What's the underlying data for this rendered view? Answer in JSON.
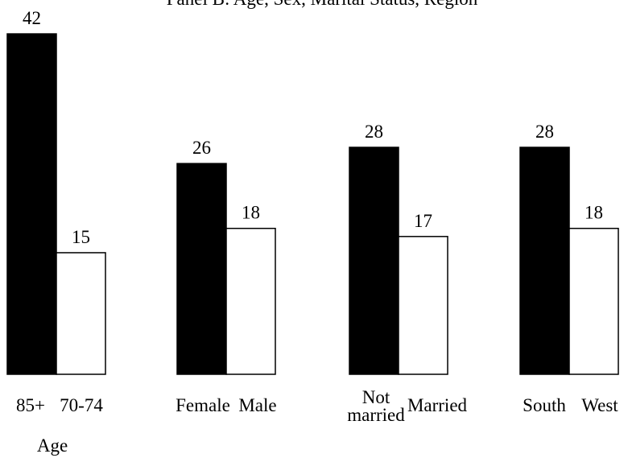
{
  "chart_data": {
    "type": "bar",
    "title": "Panel B: Age, Sex, Marital Status, Region",
    "categories": [
      "85+",
      "70-74",
      "Female",
      "Male",
      "Not\nmarried",
      "Married",
      "South",
      "West"
    ],
    "values": [
      42,
      15,
      26,
      18,
      28,
      17,
      28,
      18
    ],
    "colors": [
      "#000000",
      "#ffffff"
    ],
    "x_label": "Age"
  }
}
